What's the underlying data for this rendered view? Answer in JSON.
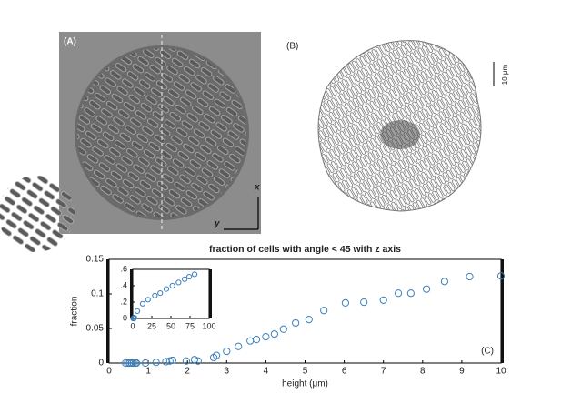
{
  "panels": {
    "a_label": "(A)",
    "b_label": "(B)",
    "axis_x": "x",
    "axis_y": "y",
    "scale_bar": "10 μm"
  },
  "chart_data": [
    {
      "type": "scatter",
      "title": "fraction of cells with angle < 45 with z axis",
      "x_label": "height (μm)",
      "y_label": "fraction",
      "annotation": "(C)",
      "color": "#3a7fbf",
      "x": [
        0.42,
        0.47,
        0.52,
        0.57,
        0.62,
        0.67,
        0.7,
        0.93,
        1.2,
        1.45,
        1.55,
        1.62,
        1.97,
        2.18,
        2.27,
        2.67,
        2.74,
        3.0,
        3.3,
        3.6,
        3.76,
        4.0,
        4.22,
        4.45,
        4.76,
        5.1,
        5.48,
        6.03,
        6.5,
        7.0,
        7.38,
        7.7,
        8.1,
        8.56,
        9.2,
        10
      ],
      "values": [
        0,
        0,
        0,
        0,
        0,
        0,
        0,
        0,
        0.001,
        0.002,
        0.003,
        0.004,
        0.003,
        0.005,
        0.003,
        0.008,
        0.011,
        0.017,
        0.024,
        0.032,
        0.034,
        0.038,
        0.042,
        0.049,
        0.058,
        0.063,
        0.076,
        0.087,
        0.088,
        0.091,
        0.101,
        0.101,
        0.107,
        0.118,
        0.125,
        0.126
      ],
      "xlim": [
        0,
        10
      ],
      "xticks": [
        0,
        1,
        2,
        3,
        4,
        5,
        6,
        7,
        8,
        9,
        10
      ],
      "ylim": [
        0,
        0.15
      ],
      "yticks": [
        0,
        0.05,
        0.1,
        0.15
      ]
    },
    {
      "type": "scatter",
      "color": "#3a7fbf",
      "x": [
        0.5,
        1,
        1.5,
        2,
        6,
        13,
        20,
        29,
        36,
        44,
        52,
        60,
        68,
        74,
        81
      ],
      "values": [
        0,
        0,
        0,
        0.01,
        0.09,
        0.18,
        0.23,
        0.28,
        0.31,
        0.36,
        0.4,
        0.44,
        0.48,
        0.51,
        0.54
      ],
      "xlim": [
        0,
        100
      ],
      "xticks": [
        0,
        25,
        50,
        75,
        100
      ],
      "ylim": [
        0,
        0.6
      ],
      "yticks": [
        0,
        {
          "value": 0.2,
          "label": ".2"
        },
        {
          "value": 0.4,
          "label": ".4"
        },
        {
          "value": 0.6,
          "label": ".6"
        }
      ]
    }
  ]
}
